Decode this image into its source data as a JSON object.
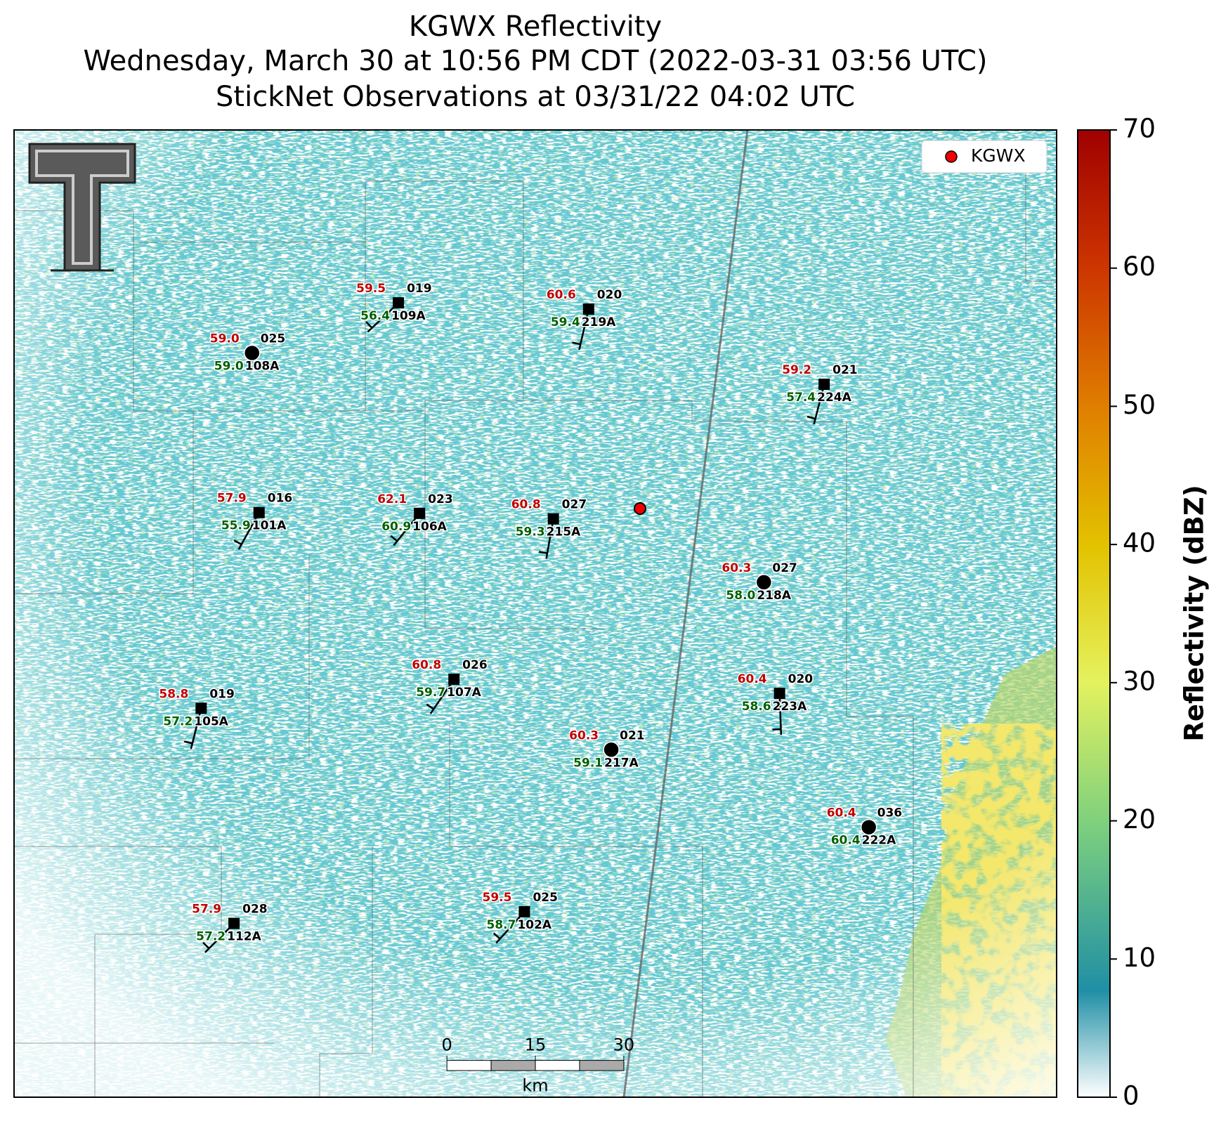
{
  "title": {
    "line1": "KGWX Reflectivity",
    "line2": "Wednesday, March 30 at 10:56 PM CDT (2022-03-31 03:56 UTC)",
    "line3": "StickNet Observations at 03/31/22 04:02 UTC"
  },
  "legend": {
    "label": "KGWX"
  },
  "stations": [
    {
      "id": "109A",
      "temp": "59.5",
      "dewpoint": "56.4",
      "wind": "019"
    },
    {
      "id": "219A",
      "temp": "60.6",
      "dewpoint": "59.4",
      "wind": "020"
    },
    {
      "id": "108A",
      "temp": "59.0",
      "dewpoint": "59.0",
      "wind": "025"
    },
    {
      "id": "224A",
      "temp": "59.2",
      "dewpoint": "57.4",
      "wind": "021"
    },
    {
      "id": "101A",
      "temp": "57.9",
      "dewpoint": "55.9",
      "wind": "016"
    },
    {
      "id": "106A",
      "temp": "62.1",
      "dewpoint": "60.9",
      "wind": "023"
    },
    {
      "id": "215A",
      "temp": "60.8",
      "dewpoint": "59.3",
      "wind": "027"
    },
    {
      "id": "218A",
      "temp": "60.3",
      "dewpoint": "58.0",
      "wind": "027"
    },
    {
      "id": "107A",
      "temp": "60.8",
      "dewpoint": "59.7",
      "wind": "026"
    },
    {
      "id": "105A",
      "temp": "58.8",
      "dewpoint": "57.2",
      "wind": "019"
    },
    {
      "id": "223A",
      "temp": "60.4",
      "dewpoint": "58.6",
      "wind": "020"
    },
    {
      "id": "217A",
      "temp": "60.3",
      "dewpoint": "59.1",
      "wind": "021"
    },
    {
      "id": "222A",
      "temp": "60.4",
      "dewpoint": "60.4",
      "wind": "036"
    },
    {
      "id": "102A",
      "temp": "59.5",
      "dewpoint": "58.7",
      "wind": "025"
    },
    {
      "id": "112A",
      "temp": "57.9",
      "dewpoint": "57.2",
      "wind": "028"
    }
  ],
  "colorbar": {
    "label": "Reflectivity (dBZ)",
    "lim": [
      0,
      70
    ],
    "ticks": [
      0,
      10,
      20,
      30,
      40,
      50,
      60,
      70
    ]
  },
  "scale_bar": {
    "ticks": [
      0,
      15,
      30
    ],
    "unit": "km"
  }
}
